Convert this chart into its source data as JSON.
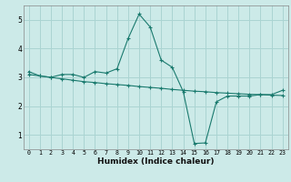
{
  "xlabel": "Humidex (Indice chaleur)",
  "background_color": "#cceae8",
  "grid_color": "#aad4d2",
  "line_color": "#1a7a6e",
  "xlim": [
    -0.5,
    23.5
  ],
  "ylim": [
    0.5,
    5.5
  ],
  "xticks": [
    0,
    1,
    2,
    3,
    4,
    5,
    6,
    7,
    8,
    9,
    10,
    11,
    12,
    13,
    14,
    15,
    16,
    17,
    18,
    19,
    20,
    21,
    22,
    23
  ],
  "yticks": [
    1,
    2,
    3,
    4,
    5
  ],
  "series1_x": [
    0,
    1,
    2,
    3,
    4,
    5,
    6,
    7,
    8,
    9,
    10,
    11,
    12,
    13,
    14,
    15,
    16,
    17,
    18,
    19,
    20,
    21,
    22,
    23
  ],
  "series1_y": [
    3.2,
    3.05,
    3.0,
    3.1,
    3.1,
    3.0,
    3.2,
    3.15,
    3.3,
    4.35,
    5.2,
    4.75,
    3.6,
    3.35,
    2.5,
    0.7,
    0.72,
    2.15,
    2.35,
    2.35,
    2.35,
    2.4,
    2.4,
    2.55
  ],
  "series2_x": [
    0,
    1,
    2,
    3,
    4,
    5,
    6,
    7,
    8,
    9,
    10,
    11,
    12,
    13,
    14,
    15,
    16,
    17,
    18,
    19,
    20,
    21,
    22,
    23
  ],
  "series2_y": [
    3.1,
    3.05,
    3.0,
    2.95,
    2.9,
    2.85,
    2.82,
    2.78,
    2.75,
    2.72,
    2.68,
    2.65,
    2.62,
    2.58,
    2.55,
    2.52,
    2.5,
    2.47,
    2.45,
    2.43,
    2.41,
    2.4,
    2.38,
    2.37
  ]
}
